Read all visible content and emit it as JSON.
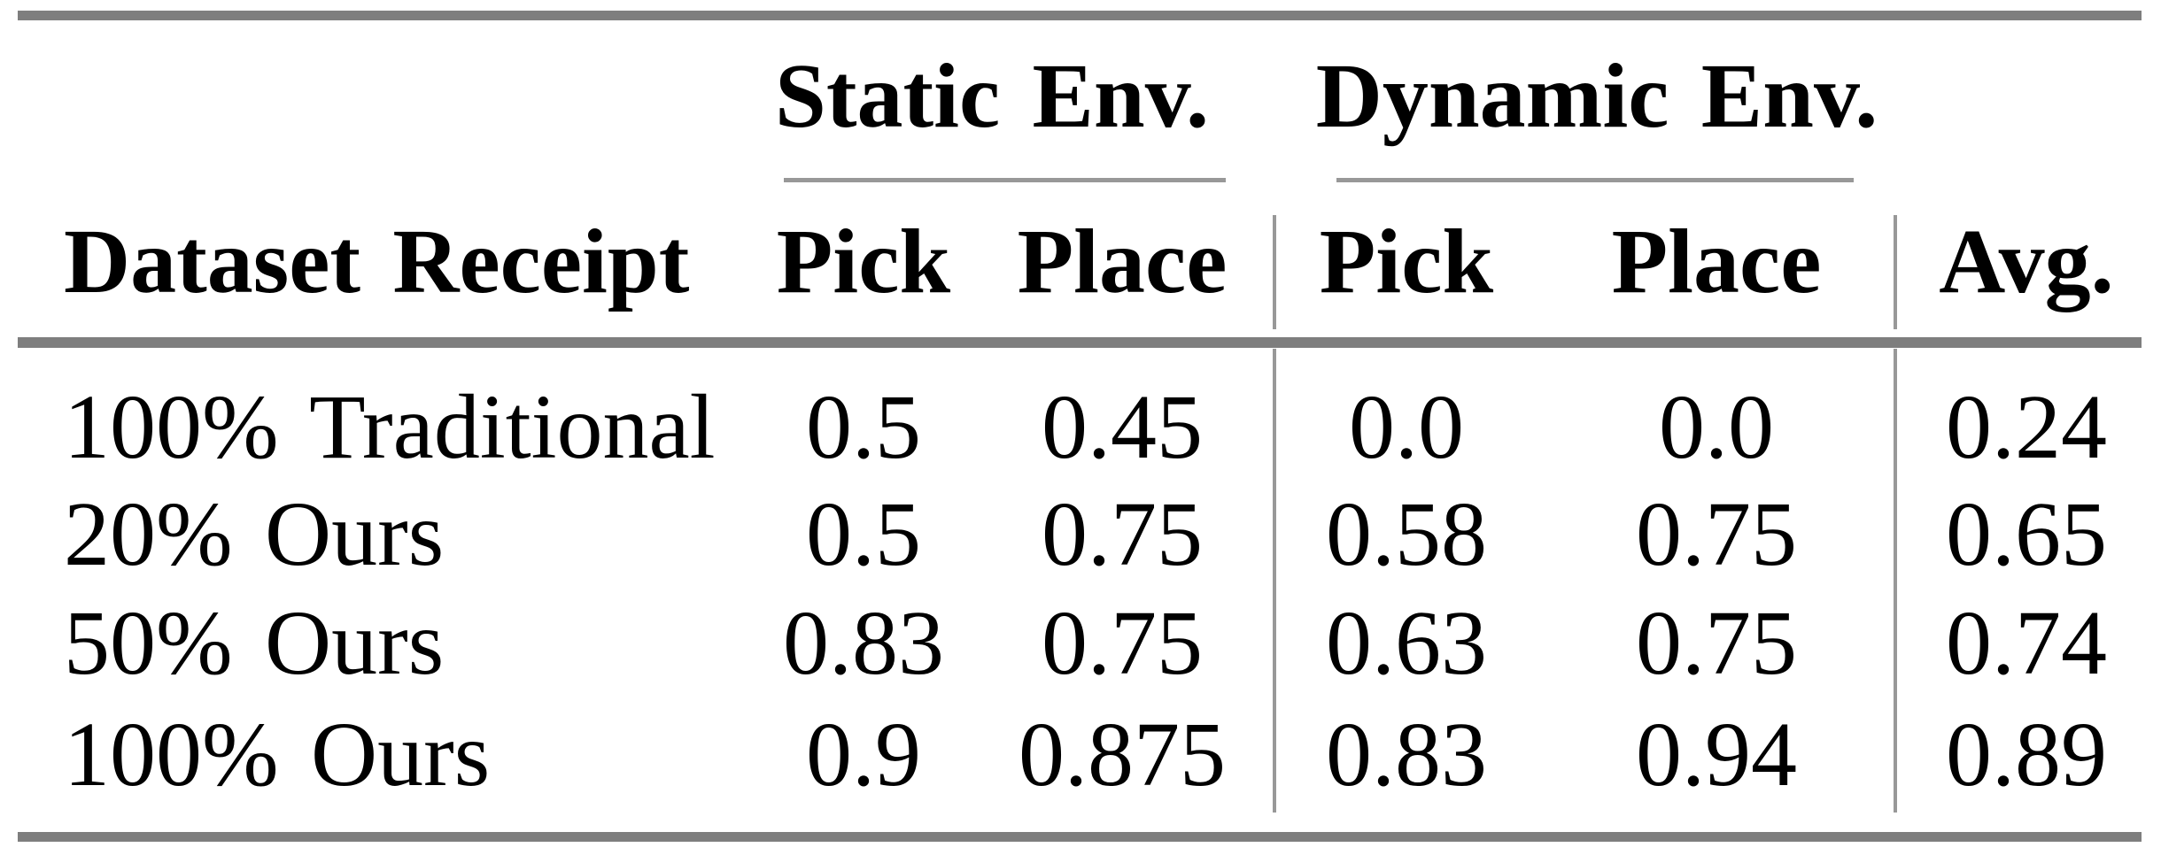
{
  "table": {
    "groups": {
      "static": "Static Env.",
      "dynamic": "Dynamic Env."
    },
    "header": {
      "row_label": "Dataset Receipt",
      "static_pick": "Pick",
      "static_place": "Place",
      "dynamic_pick": "Pick",
      "dynamic_place": "Place",
      "avg": "Avg."
    },
    "rows": [
      {
        "label": "100% Traditional",
        "values": [
          "0.5",
          "0.45",
          "0.0",
          "0.0",
          "0.24"
        ]
      },
      {
        "label": "20% Ours",
        "values": [
          "0.5",
          "0.75",
          "0.58",
          "0.75",
          "0.65"
        ]
      },
      {
        "label": "50% Ours",
        "values": [
          "0.83",
          "0.75",
          "0.63",
          "0.75",
          "0.74"
        ]
      },
      {
        "label": "100% Ours",
        "values": [
          "0.9",
          "0.875",
          "0.83",
          "0.94",
          "0.89"
        ]
      }
    ],
    "colors": {
      "thick_rule": "#7e7e7e",
      "thin_rule": "#989898",
      "text": "#000000",
      "background": "#ffffff"
    }
  },
  "chart_data": {
    "type": "table",
    "title": "",
    "column_groups": [
      "Static Env.",
      "Dynamic Env."
    ],
    "columns": [
      "Dataset Receipt",
      "Static Pick",
      "Static Place",
      "Dynamic Pick",
      "Dynamic Place",
      "Avg."
    ],
    "rows": [
      [
        "100% Traditional",
        0.5,
        0.45,
        0.0,
        0.0,
        0.24
      ],
      [
        "20% Ours",
        0.5,
        0.75,
        0.58,
        0.75,
        0.65
      ],
      [
        "50% Ours",
        0.83,
        0.75,
        0.63,
        0.75,
        0.74
      ],
      [
        "100% Ours",
        0.9,
        0.875,
        0.83,
        0.94,
        0.89
      ]
    ]
  }
}
